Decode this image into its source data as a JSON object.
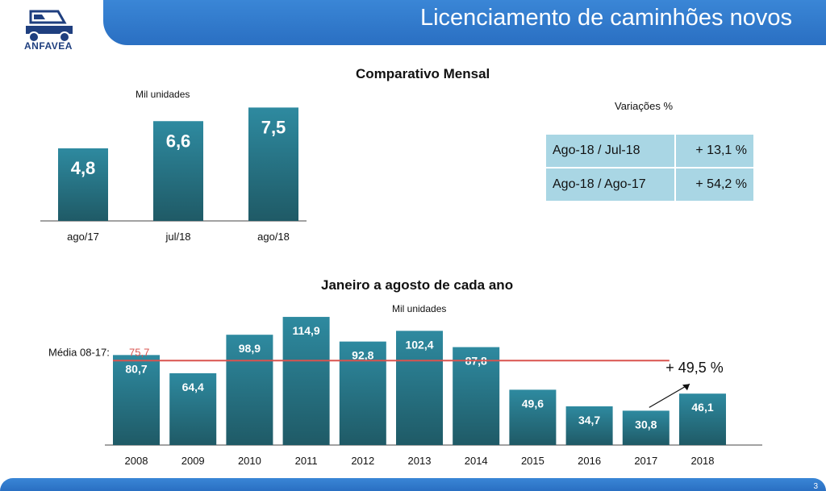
{
  "header": {
    "title": "Licenciamento de caminhões novos",
    "logo_text": "ANFAVEA"
  },
  "footer": {
    "page_number": "3"
  },
  "colors": {
    "brand_blue": "#2a6fc2",
    "bar_top": "#2e8aa0",
    "bar_bottom": "#1f5a66",
    "avg_line": "#d9534f",
    "table_bg": "#a9d6e4"
  },
  "chart_data": [
    {
      "type": "bar",
      "title": "Comparativo Mensal",
      "ylabel": "Mil unidades",
      "categories": [
        "ago/17",
        "jul/18",
        "ago/18"
      ],
      "values": [
        4.8,
        6.6,
        7.5
      ],
      "value_labels": [
        "4,8",
        "6,6",
        "7,5"
      ],
      "ylim": [
        0,
        8
      ]
    },
    {
      "type": "bar",
      "title": "Janeiro a agosto de cada ano",
      "ylabel": "Mil unidades",
      "categories": [
        "2008",
        "2009",
        "2010",
        "2011",
        "2012",
        "2013",
        "2014",
        "2015",
        "2016",
        "2017",
        "2018"
      ],
      "values": [
        80.7,
        64.4,
        98.9,
        114.9,
        92.8,
        102.4,
        87.8,
        49.6,
        34.7,
        30.8,
        46.1
      ],
      "value_labels": [
        "80,7",
        "64,4",
        "98,9",
        "114,9",
        "92,8",
        "102,4",
        "87,8",
        "49,6",
        "34,7",
        "30,8",
        "46,1"
      ],
      "ylim": [
        0,
        120
      ],
      "average": {
        "label": "Média 08-17:",
        "value": 75.7,
        "value_label": "75,7"
      },
      "annotation": "+ 49,5 %"
    }
  ],
  "variations": {
    "title": "Variações %",
    "rows": [
      {
        "label": "Ago-18 / Jul-18",
        "value": "+ 13,1 %"
      },
      {
        "label": "Ago-18 / Ago-17",
        "value": "+ 54,2 %"
      }
    ]
  }
}
